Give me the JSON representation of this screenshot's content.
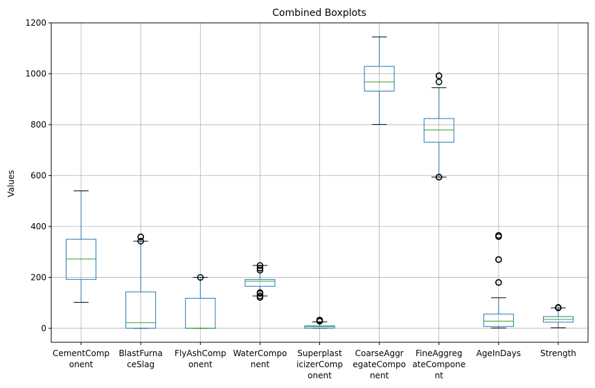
{
  "chart_data": {
    "type": "box",
    "title": "Combined Boxplots",
    "xlabel": "",
    "ylabel": "Values",
    "ylim": [
      -55,
      1200
    ],
    "yticks": [
      0,
      200,
      400,
      600,
      800,
      1000,
      1200
    ],
    "grid": true,
    "colors": {
      "box": "#1f77b4",
      "median": "#2ca02c",
      "whisker": "#1f77b4",
      "cap": "#000000",
      "grid": "#b0b0b0"
    },
    "categories": [
      {
        "label_lines": [
          "CementComp",
          "onent"
        ],
        "whislo": 102,
        "q1": 192,
        "med": 272,
        "q3": 350,
        "whishi": 540,
        "fliers": []
      },
      {
        "label_lines": [
          "BlastFurna",
          "ceSlag"
        ],
        "whislo": 0,
        "q1": 0,
        "med": 22,
        "q3": 143,
        "whishi": 342,
        "fliers": [
          359,
          359,
          342
        ]
      },
      {
        "label_lines": [
          "FlyAshComp",
          "onent"
        ],
        "whislo": 0,
        "q1": 0,
        "med": 0,
        "q3": 118,
        "whishi": 200,
        "fliers": [
          200
        ]
      },
      {
        "label_lines": [
          "WaterCompo",
          "nent"
        ],
        "whislo": 127,
        "q1": 165,
        "med": 185,
        "q3": 192,
        "whishi": 247,
        "fliers": [
          121,
          127,
          137,
          140,
          228,
          236,
          247
        ]
      },
      {
        "label_lines": [
          "Superplast",
          "icizerComp",
          "onent"
        ],
        "whislo": 0,
        "q1": 0,
        "med": 6,
        "q3": 10,
        "whishi": 25,
        "fliers": [
          28,
          28,
          32,
          32
        ]
      },
      {
        "label_lines": [
          "CoarseAggr",
          "egateCompo",
          "nent"
        ],
        "whislo": 801,
        "q1": 932,
        "med": 968,
        "q3": 1029,
        "whishi": 1145,
        "fliers": []
      },
      {
        "label_lines": [
          "FineAggreg",
          "ateCompone",
          "nt"
        ],
        "whislo": 594,
        "q1": 731,
        "med": 779,
        "q3": 824,
        "whishi": 945,
        "fliers": [
          594,
          594,
          968,
          992,
          992
        ]
      },
      {
        "label_lines": [
          "AgeInDays"
        ],
        "whislo": 1,
        "q1": 7,
        "med": 28,
        "q3": 56,
        "whishi": 120,
        "fliers": [
          180,
          180,
          270,
          270,
          360,
          365
        ]
      },
      {
        "label_lines": [
          "Strength"
        ],
        "whislo": 2,
        "q1": 24,
        "med": 35,
        "q3": 46,
        "whishi": 80,
        "fliers": [
          80,
          82
        ]
      }
    ]
  }
}
